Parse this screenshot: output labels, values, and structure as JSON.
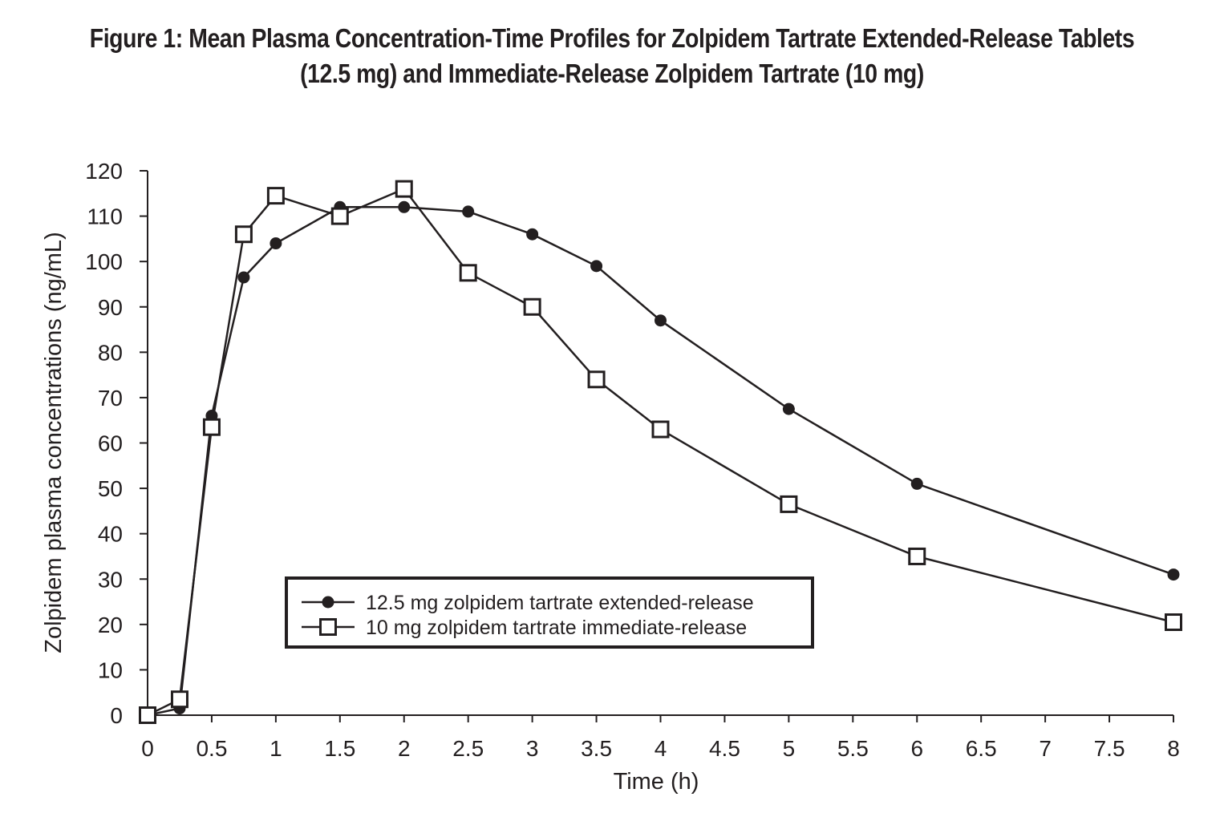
{
  "chart_data": {
    "type": "line",
    "title_line1": "Figure 1: Mean Plasma Concentration-Time Profiles for Zolpidem Tartrate Extended-Release Tablets",
    "title_line2": "(12.5 mg) and Immediate-Release Zolpidem Tartrate (10 mg)",
    "xlabel": "Time (h)",
    "ylabel": "Zolpidem plasma concentrations (ng/mL)",
    "xlim": [
      0,
      8
    ],
    "ylim": [
      0,
      120
    ],
    "xticks": [
      "0",
      "0.5",
      "1",
      "1.5",
      "2",
      "2.5",
      "3",
      "3.5",
      "4",
      "4.5",
      "5",
      "5.5",
      "6",
      "6.5",
      "7",
      "7.5",
      "8"
    ],
    "yticks": [
      "0",
      "10",
      "20",
      "30",
      "40",
      "50",
      "60",
      "70",
      "80",
      "90",
      "100",
      "110",
      "120"
    ],
    "grid": false,
    "legend_position": "lower-left-center",
    "series": [
      {
        "name": "12.5 mg zolpidem tartrate extended-release",
        "marker": "filled-circle",
        "color": "#231f20",
        "points": [
          [
            0,
            0
          ],
          [
            0.25,
            1.5
          ],
          [
            0.5,
            66
          ],
          [
            0.75,
            96.5
          ],
          [
            1,
            104
          ],
          [
            1.5,
            112
          ],
          [
            2,
            112
          ],
          [
            2.5,
            111
          ],
          [
            3,
            106
          ],
          [
            3.5,
            99
          ],
          [
            4,
            87
          ],
          [
            5,
            67.5
          ],
          [
            6,
            51
          ],
          [
            8,
            31
          ]
        ]
      },
      {
        "name": "10 mg zolpidem tartrate immediate-release",
        "marker": "open-square",
        "color": "#231f20",
        "points": [
          [
            0,
            0
          ],
          [
            0.25,
            3.5
          ],
          [
            0.5,
            63.5
          ],
          [
            0.75,
            106
          ],
          [
            1,
            114.5
          ],
          [
            1.5,
            110
          ],
          [
            2,
            116
          ],
          [
            2.5,
            97.5
          ],
          [
            3,
            90
          ],
          [
            3.5,
            74
          ],
          [
            4,
            63
          ],
          [
            5,
            46.5
          ],
          [
            6,
            35
          ],
          [
            8,
            20.5
          ]
        ]
      }
    ]
  }
}
